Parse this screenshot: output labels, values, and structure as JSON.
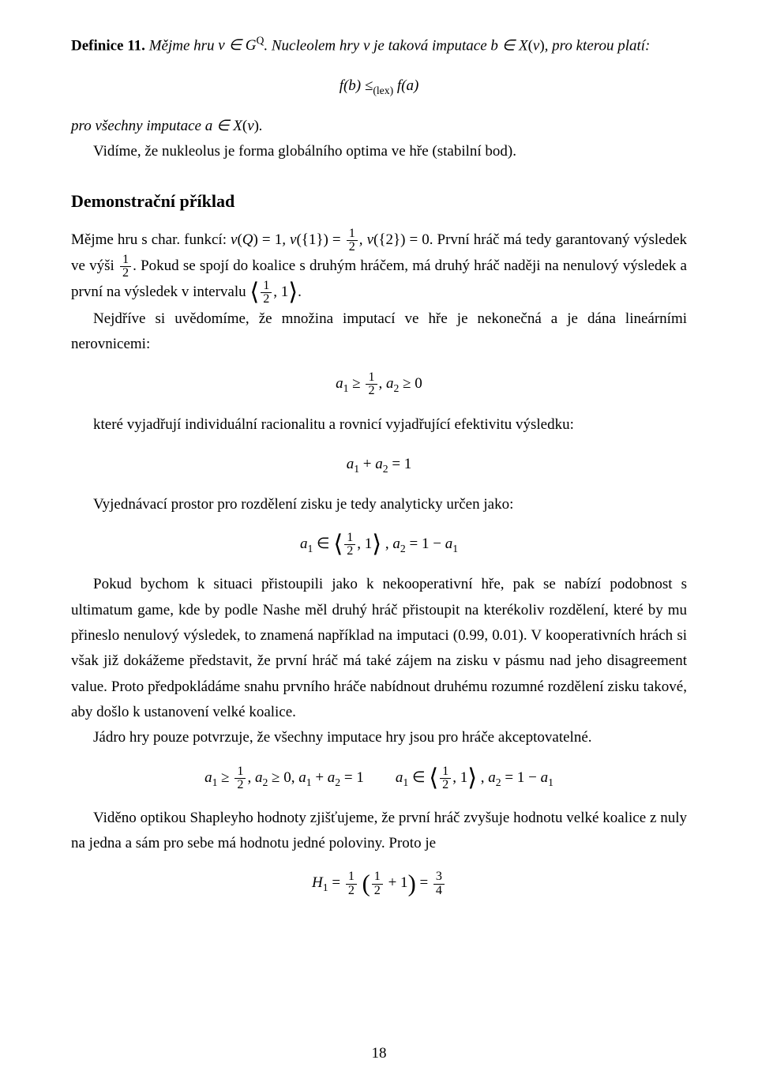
{
  "def": {
    "label": "Definice 11.",
    "text_a": "Mějme hru ",
    "text_b": ". Nucleolem hry ",
    "text_c": " je taková imputace ",
    "text_d": ", pro kterou platí:"
  },
  "eq1": "f(b) ≤",
  "eq1_sub": "(lex)",
  "eq1_b": " f(a)",
  "line2_a": "pro všechny imputace ",
  "line2_b": ".",
  "line3": "Vidíme, že nukleolus je forma globálního optima ve hře (stabilní bod).",
  "sec_head": "Demonstrační příklad",
  "p1_a": "Mějme hru s char. funkcí: ",
  "p1_b": ". První hráč má tedy garantovaný výsledek ve výši ",
  "p1_c": ". Pokud se spojí do koalice s druhým hráčem, má druhý hráč naději na nenulový výsledek a první na výsledek v intervalu ",
  "p1_d": ".",
  "p2": "Nejdříve si uvědomíme, že množina imputací ve hře je nekonečná a je dána lineárními nerovnicemi:",
  "p3": "které vyjadřují individuální racionalitu a rovnicí vyjadřující efektivitu výsledku:",
  "p4": "Vyjednávací prostor pro rozdělení zisku je tedy analyticky určen jako:",
  "p5_a": "Pokud bychom k situaci přistoupili jako k nekooperativní hře, pak se nabízí podobnost s ultimatum game, kde by podle Nashe měl druhý hráč přistoupit na kterékoliv rozdělení, které by mu přineslo nenulový výsledek, to znamená například na imputaci ",
  "p5_b": ". V kooperativních hrách si však již dokážeme představit, že první hráč má také zájem na zisku v pásmu nad jeho disagreement value. Proto předpokládáme snahu prvního hráče nabídnout druhému rozumné rozdělení zisku takové, aby došlo k ustanovení velké koalice.",
  "p6": "Jádro hry pouze potvrzuje, že všechny imputace hry jsou pro hráče akceptovatelné.",
  "p7": "Viděno optikou Shapleyho hodnoty zjišťujeme, že první hráč zvyšuje hodnotu velké koalice z nuly na jedna a sám pro sebe má hodnotu jedné poloviny. Proto je",
  "page_number": "18"
}
